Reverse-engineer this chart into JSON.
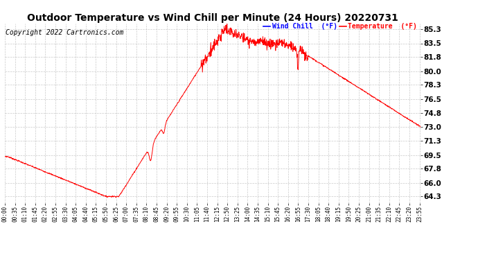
{
  "title": "Outdoor Temperature vs Wind Chill per Minute (24 Hours) 20220731",
  "copyright": "Copyright 2022 Cartronics.com",
  "legend_labels": [
    "Wind Chill  (°F)",
    "Temperature  (°F)"
  ],
  "legend_colors": [
    "blue",
    "red"
  ],
  "line_color": "red",
  "background_color": "#ffffff",
  "grid_color": "#bbbbbb",
  "yticks": [
    64.3,
    66.0,
    67.8,
    69.5,
    71.3,
    73.0,
    74.8,
    76.5,
    78.3,
    80.0,
    81.8,
    83.5,
    85.3
  ],
  "ylim": [
    63.5,
    86.0
  ],
  "title_fontsize": 10,
  "copyright_fontsize": 7,
  "xtick_fontsize": 5.5,
  "ytick_fontsize": 7.5,
  "figwidth": 6.9,
  "figheight": 3.75,
  "dpi": 100
}
